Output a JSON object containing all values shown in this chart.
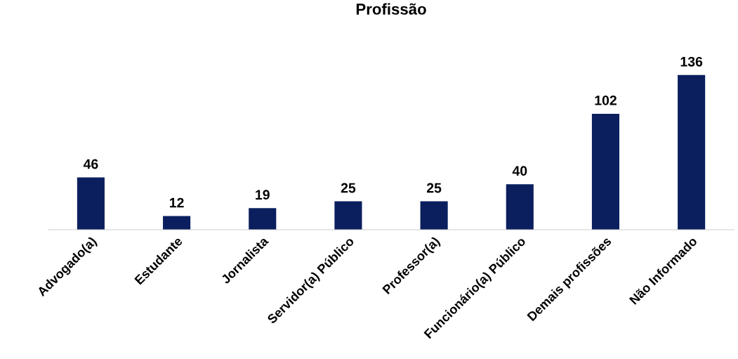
{
  "chart_data": {
    "type": "bar",
    "title": "Profissão",
    "categories": [
      "Advogado(a)",
      "Estudante",
      "Jornalista",
      "Servidor(a) Público",
      "Professor(a)",
      "Funcionário(a) Público",
      "Demais profissões",
      "Não Informado"
    ],
    "values": [
      46,
      12,
      19,
      25,
      25,
      40,
      102,
      136
    ],
    "color": "#0b1f5e",
    "data_labels": true,
    "grid": false,
    "tick_labels": "x"
  }
}
